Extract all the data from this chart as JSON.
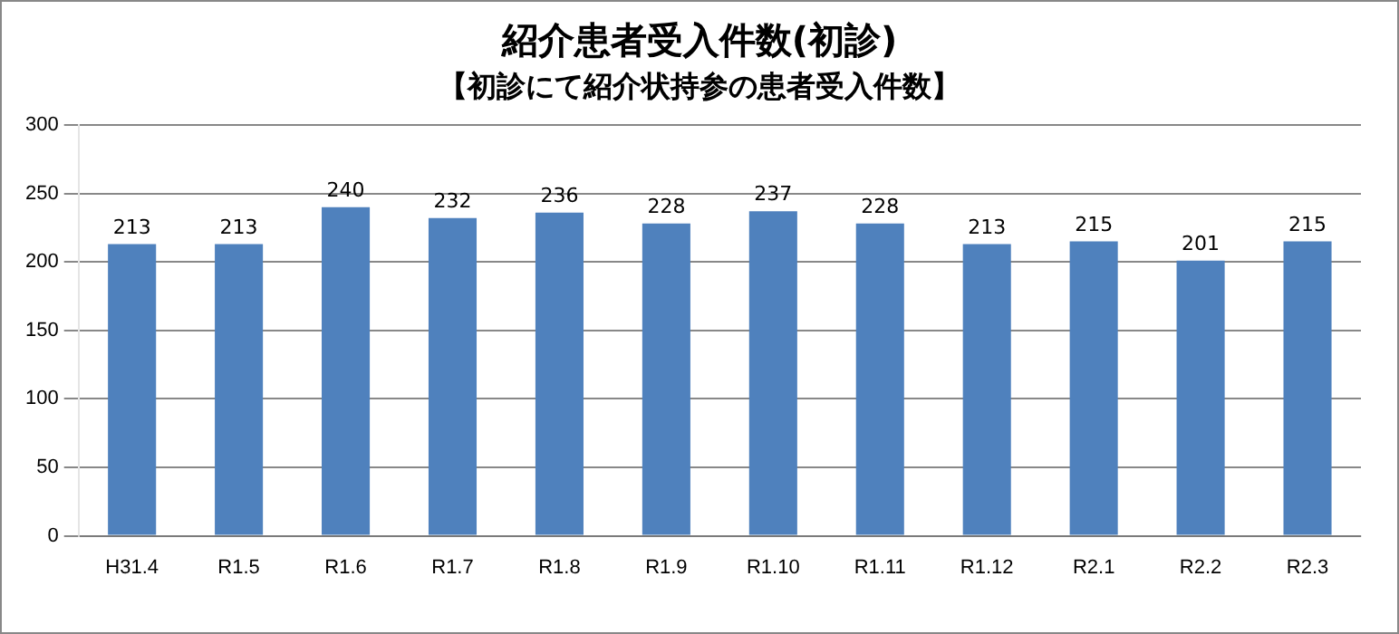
{
  "chart_data": {
    "type": "bar",
    "title": "紹介患者受入件数(初診)",
    "subtitle": "【初診にて紹介状持参の患者受入件数】",
    "categories": [
      "H31.4",
      "R1.5",
      "R1.6",
      "R1.7",
      "R1.8",
      "R1.9",
      "R1.10",
      "R1.11",
      "R1.12",
      "R2.1",
      "R2.2",
      "R2.3"
    ],
    "values": [
      213,
      213,
      240,
      232,
      236,
      228,
      237,
      228,
      213,
      215,
      201,
      215
    ],
    "color": "#4f81bd",
    "ylim": [
      0,
      300
    ],
    "yticks": [
      0,
      50,
      100,
      150,
      200,
      250,
      300
    ],
    "grid": "y",
    "data_labels": true
  }
}
